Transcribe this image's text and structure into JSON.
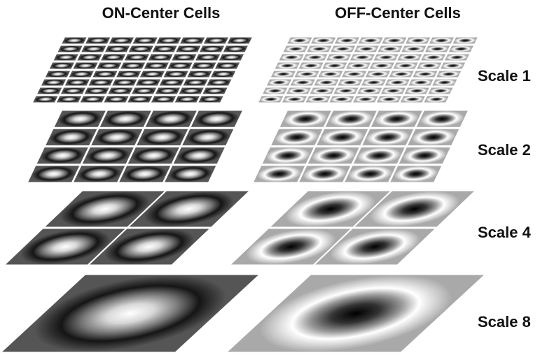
{
  "header": {
    "columns": [
      "ON-Center Cells",
      "OFF-Center Cells"
    ]
  },
  "scales": [
    "Scale 1",
    "Scale 2",
    "Scale 4",
    "Scale 8"
  ]
}
